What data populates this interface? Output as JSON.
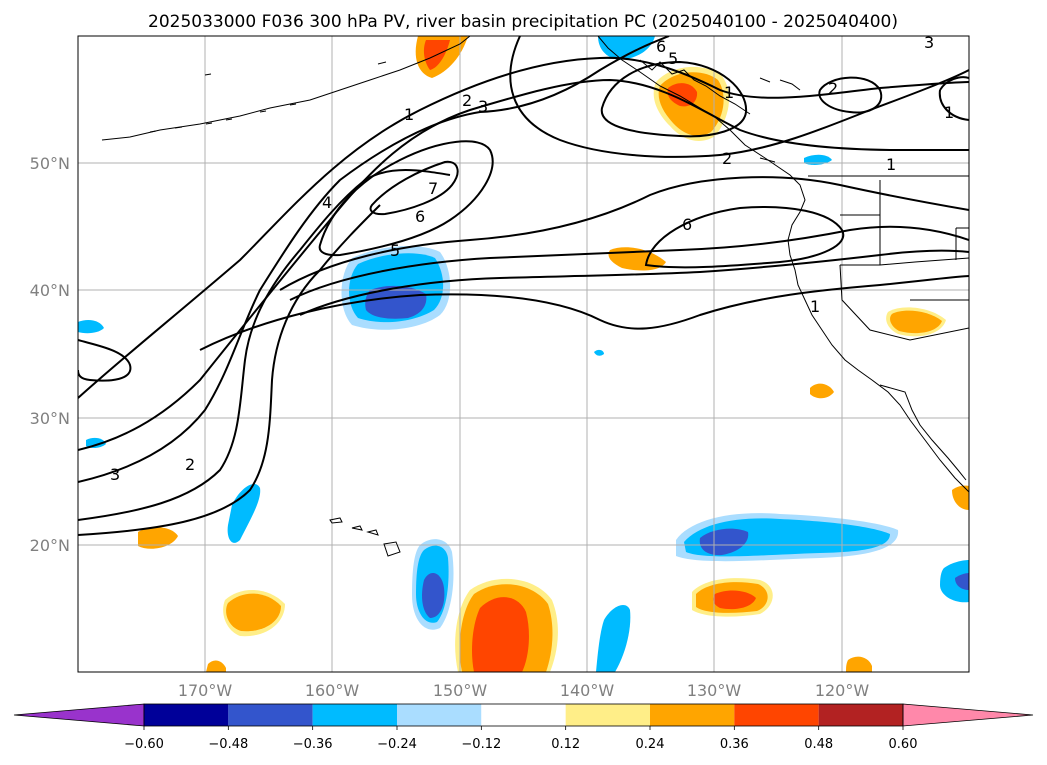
{
  "title": "2025033000 F036 300 hPa PV, river basin precipitation PC (2025040100 - 2025040400)",
  "lat_labels": [
    "50°N",
    "40°N",
    "30°N",
    "20°N"
  ],
  "lon_labels": [
    "170°W",
    "160°W",
    "150°W",
    "140°W",
    "130°W",
    "120°W"
  ],
  "colorbar": {
    "ticks": [
      "−0.60",
      "−0.48",
      "−0.36",
      "−0.24",
      "−0.12",
      "0.12",
      "0.24",
      "0.36",
      "0.48",
      "0.60"
    ],
    "colors": [
      "#9933cc",
      "#000099",
      "#3355cc",
      "#00bbff",
      "#aaddff",
      "#ffffff",
      "#ffee88",
      "#ffa500",
      "#ff4500",
      "#b22222",
      "#ff88aa"
    ]
  },
  "pv_contour_labels": [
    "1",
    "2",
    "3",
    "4",
    "5",
    "6",
    "7",
    "1",
    "2",
    "6",
    "2",
    "1",
    "6",
    "3",
    "1",
    "1",
    "3",
    "2",
    "5"
  ],
  "map": {
    "projection": "cylindrical",
    "lon_range": [
      -180,
      -110
    ],
    "lat_range": [
      10,
      60
    ],
    "grid": true
  }
}
